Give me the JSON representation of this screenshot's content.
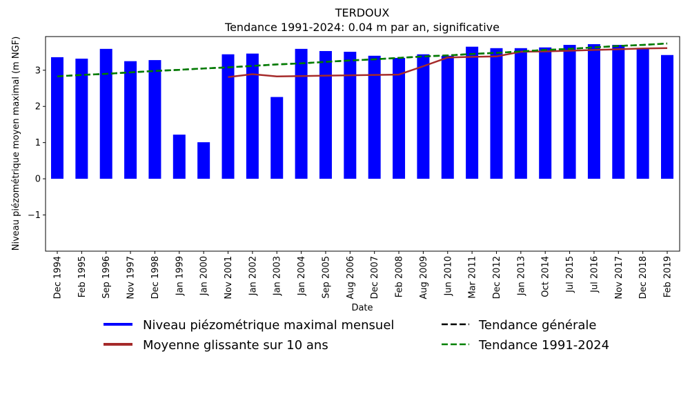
{
  "chart_data": {
    "type": "bar",
    "title": "TERDOUX",
    "subtitle": "Tendance 1991-2024: 0.04 m par an, significative",
    "xlabel": "Date",
    "ylabel": "Niveau piézométrique moyen maximal (m NGF)",
    "ylim": [
      -2.0,
      3.93
    ],
    "yticks": [
      -1,
      0,
      1,
      2,
      3
    ],
    "ytick_labels": [
      "−1",
      "0",
      "1",
      "2",
      "3"
    ],
    "grid": false,
    "legend_placement": "bottom",
    "categories": [
      "Dec 1994",
      "Feb 1995",
      "Sep 1996",
      "Nov 1997",
      "Dec 1998",
      "Jan 1999",
      "Jan 2000",
      "Nov 2001",
      "Jan 2002",
      "Jan 2003",
      "Jan 2004",
      "Sep 2005",
      "Aug 2006",
      "Dec 2007",
      "Feb 2008",
      "Aug 2009",
      "Jun 2010",
      "Mar 2011",
      "Dec 2012",
      "Jan 2013",
      "Oct 2014",
      "Jul 2015",
      "Jul 2016",
      "Nov 2017",
      "Dec 2018",
      "Feb 2019"
    ],
    "series": [
      {
        "name": "Niveau piézométrique maximal mensuel",
        "type": "bar",
        "color": "#0000ff",
        "values": [
          3.36,
          3.32,
          3.59,
          3.25,
          3.28,
          1.22,
          1.01,
          3.44,
          3.46,
          2.26,
          3.59,
          3.53,
          3.51,
          3.4,
          3.34,
          3.44,
          3.4,
          3.65,
          3.61,
          3.61,
          3.63,
          3.7,
          3.72,
          3.7,
          3.61,
          3.42
        ]
      },
      {
        "name": "Moyenne glissante sur 10 ans",
        "type": "line",
        "color": "#a52a2a",
        "dash": "solid",
        "values": [
          null,
          null,
          null,
          null,
          null,
          null,
          null,
          2.81,
          2.89,
          2.83,
          2.84,
          2.85,
          2.86,
          2.87,
          2.88,
          3.11,
          3.35,
          3.37,
          3.38,
          3.51,
          3.52,
          3.54,
          3.56,
          3.58,
          3.6,
          3.61
        ]
      },
      {
        "name": "Tendance générale",
        "type": "line",
        "color": "#000000",
        "dash": "dashed",
        "values": [
          2.83,
          2.87,
          2.9,
          2.94,
          2.98,
          3.01,
          3.05,
          3.08,
          3.12,
          3.16,
          3.19,
          3.23,
          3.27,
          3.3,
          3.34,
          3.38,
          3.41,
          3.45,
          3.48,
          3.52,
          3.56,
          3.59,
          3.63,
          3.67,
          3.7,
          3.74
        ]
      },
      {
        "name": "Tendance 1991-2024",
        "type": "line",
        "color": "#008000",
        "dash": "dashed",
        "values": [
          2.83,
          2.87,
          2.9,
          2.94,
          2.98,
          3.01,
          3.05,
          3.08,
          3.12,
          3.16,
          3.19,
          3.23,
          3.27,
          3.3,
          3.34,
          3.38,
          3.41,
          3.45,
          3.48,
          3.52,
          3.56,
          3.59,
          3.63,
          3.67,
          3.7,
          3.74
        ]
      }
    ]
  }
}
